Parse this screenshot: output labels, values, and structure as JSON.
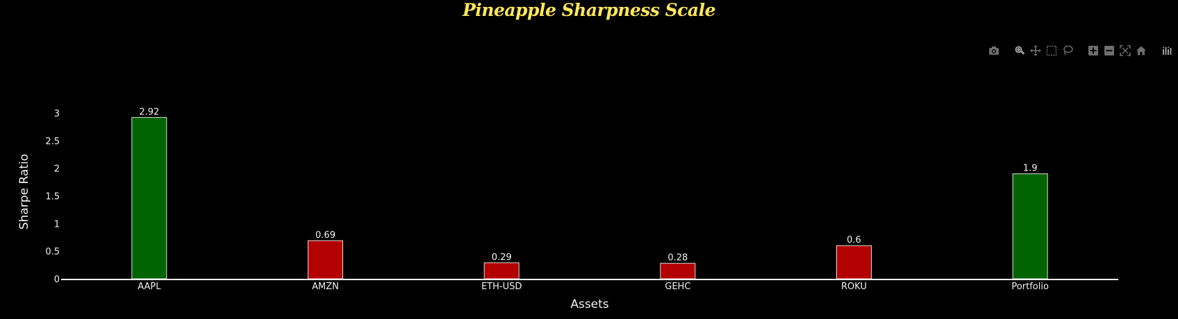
{
  "colors": {
    "background": "#000000",
    "title": "#ffe75a",
    "positive_bar": "#006400",
    "negative_bar": "#b30000",
    "bar_outline": "#e0e0e0",
    "text": "#f2f2f2",
    "modebar_icon": "#6e6e6e",
    "modebar_active": "#a0a0a0"
  },
  "modebar": {
    "buttons": [
      {
        "name": "camera-icon"
      },
      {
        "name": "zoom-icon"
      },
      {
        "name": "pan-icon"
      },
      {
        "name": "box-select-icon"
      },
      {
        "name": "lasso-select-icon"
      },
      {
        "name": "zoom-in-icon"
      },
      {
        "name": "zoom-out-icon"
      },
      {
        "name": "autoscale-icon"
      },
      {
        "name": "reset-axes-icon"
      },
      {
        "name": "plotly-logo-icon"
      }
    ]
  },
  "chart_data": {
    "type": "bar",
    "title": "Pineapple Sharpness Scale",
    "xlabel": "Assets",
    "ylabel": "Sharpe Ratio",
    "categories": [
      "AAPL",
      "AMZN",
      "ETH-USD",
      "GEHC",
      "ROKU",
      "Portfolio"
    ],
    "values": [
      2.92,
      0.69,
      0.29,
      0.28,
      0.6,
      1.9
    ],
    "data_labels": [
      "2.92",
      "0.69",
      "0.29",
      "0.28",
      "0.6",
      "1.9"
    ],
    "bar_colors": [
      "#006400",
      "#b30000",
      "#b30000",
      "#b30000",
      "#b30000",
      "#006400"
    ],
    "ylim": [
      0,
      3.25
    ],
    "yticks": [
      0,
      0.5,
      1,
      1.5,
      2,
      2.5,
      3
    ],
    "ytick_labels": [
      "0",
      "0.5",
      "1",
      "1.5",
      "2",
      "2.5",
      "3"
    ],
    "grid": false,
    "legend": "none"
  }
}
